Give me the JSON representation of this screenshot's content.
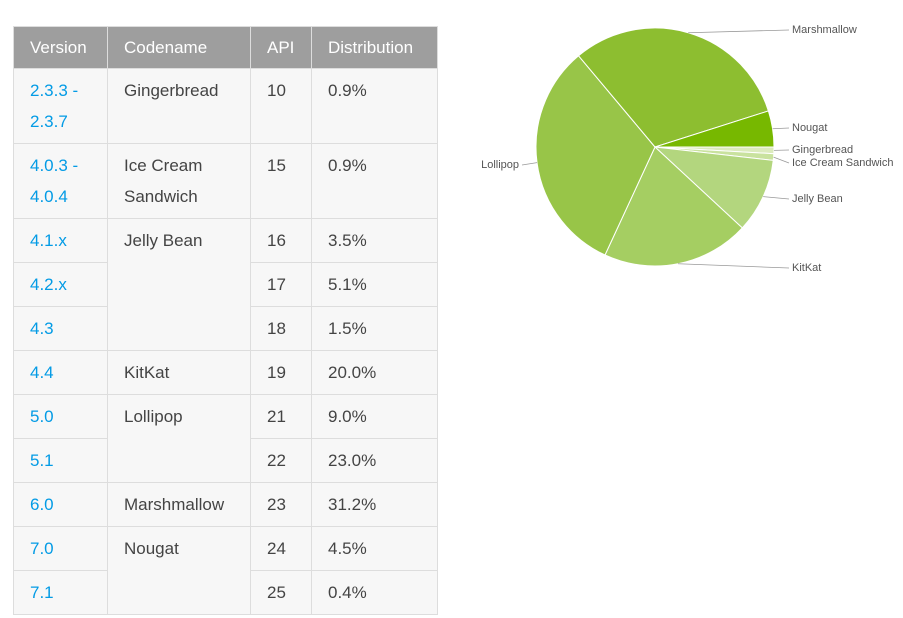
{
  "table": {
    "headers": [
      "Version",
      "Codename",
      "API",
      "Distribution"
    ],
    "rows": [
      {
        "version": "2.3.3 - 2.3.7",
        "codename": "Gingerbread",
        "api": 10,
        "distribution": "0.9%"
      },
      {
        "version": "4.0.3 - 4.0.4",
        "codename": "Ice Cream Sandwich",
        "api": 15,
        "distribution": "0.9%"
      },
      {
        "version": "4.1.x",
        "codename": "Jelly Bean",
        "api": 16,
        "distribution": "3.5%"
      },
      {
        "version": "4.2.x",
        "api": 17,
        "distribution": "5.1%"
      },
      {
        "version": "4.3",
        "api": 18,
        "distribution": "1.5%"
      },
      {
        "version": "4.4",
        "codename": "KitKat",
        "api": 19,
        "distribution": "20.0%"
      },
      {
        "version": "5.0",
        "codename": "Lollipop",
        "api": 21,
        "distribution": "9.0%"
      },
      {
        "version": "5.1",
        "api": 22,
        "distribution": "23.0%"
      },
      {
        "version": "6.0",
        "codename": "Marshmallow",
        "api": 23,
        "distribution": "31.2%"
      },
      {
        "version": "7.0",
        "codename": "Nougat",
        "api": 24,
        "distribution": "4.5%"
      },
      {
        "version": "7.1",
        "api": 25,
        "distribution": "0.4%"
      }
    ]
  },
  "chart_data": {
    "type": "pie",
    "categories": [
      "Gingerbread",
      "Ice Cream Sandwich",
      "Jelly Bean",
      "KitKat",
      "Lollipop",
      "Marshmallow",
      "Nougat"
    ],
    "values": [
      0.9,
      0.9,
      10.1,
      20.0,
      32.0,
      31.2,
      4.9
    ],
    "colors": [
      "#dcebbd",
      "#c9e29e",
      "#b3d67e",
      "#a5ce62",
      "#98c548",
      "#8dbe30",
      "#77b800"
    ]
  }
}
